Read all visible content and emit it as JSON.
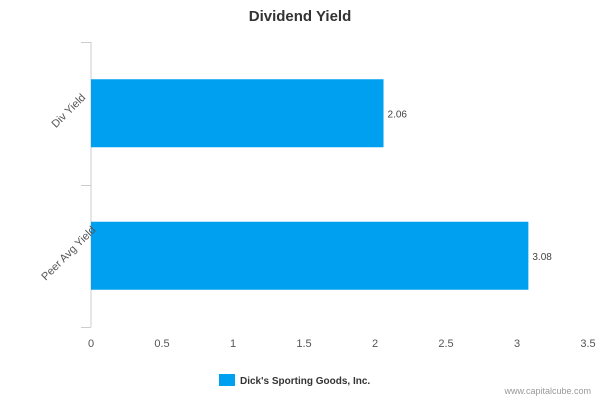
{
  "chart_data": {
    "type": "bar",
    "orientation": "horizontal",
    "title": "Dividend Yield",
    "categories": [
      "Div Yield",
      "Peer Avg Yield"
    ],
    "series": [
      {
        "name": "Dick's Sporting Goods, Inc.",
        "values": [
          2.06,
          3.08
        ],
        "color": "#00a0f0"
      }
    ],
    "data_labels": [
      "2.06",
      "3.08"
    ],
    "xlim": [
      0,
      3.5
    ],
    "x_ticks": [
      "0",
      "0.5",
      "1",
      "1.5",
      "2",
      "2.5",
      "3",
      "3.5"
    ],
    "grid": false,
    "legend_position": "bottom"
  },
  "credit": "www.capitalcube.com"
}
